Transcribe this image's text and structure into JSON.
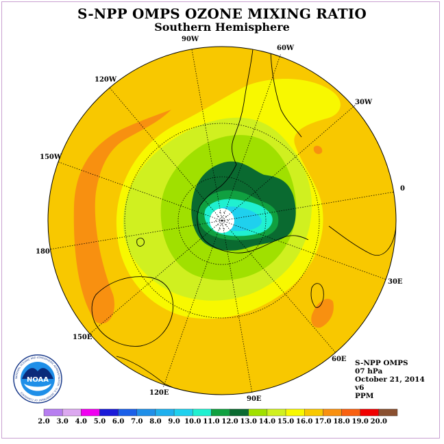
{
  "title": "S-NPP OMPS OZONE MIXING RATIO",
  "subtitle": "Southern Hemisphere",
  "longitude_labels": [
    "90W",
    "60W",
    "30W",
    "0",
    "30E",
    "60E",
    "90E",
    "120E",
    "150E",
    "180",
    "150W",
    "120W"
  ],
  "info": {
    "instrument": "S-NPP OMPS",
    "level": "07 hPa",
    "date": "October 21, 2014",
    "version": "v6",
    "units": "PPM"
  },
  "logo": {
    "text": "NOAA",
    "ring_text": "NATIONAL OCEANIC AND ATMOSPHERIC ADMINISTRATION · U.S. DEPARTMENT OF COMMERCE"
  },
  "colorbar": {
    "labels": [
      "2.0",
      "3.0",
      "4.0",
      "5.0",
      "6.0",
      "7.0",
      "8.0",
      "9.0",
      "10.0",
      "11.0",
      "12.0",
      "13.0",
      "14.0",
      "15.0",
      "16.0",
      "17.0",
      "18.0",
      "19.0",
      "20.0"
    ],
    "colors": [
      "#b77ef0",
      "#dca8f0",
      "#f000f0",
      "#1a1ad8",
      "#1a5fe8",
      "#1f8fe8",
      "#1fb0ee",
      "#1fd0ee",
      "#20f0d0",
      "#10a040",
      "#0a6a30",
      "#a0e000",
      "#d0f020",
      "#f8f800",
      "#f8c800",
      "#f89010",
      "#f86010",
      "#f00000",
      "#8a5030"
    ]
  }
}
